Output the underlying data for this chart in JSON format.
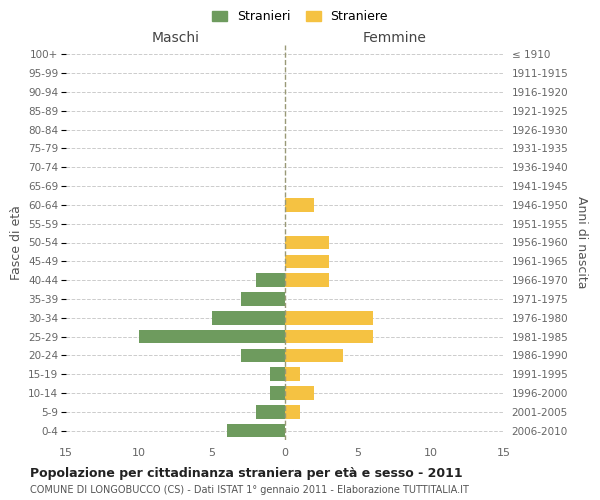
{
  "age_groups": [
    "100+",
    "95-99",
    "90-94",
    "85-89",
    "80-84",
    "75-79",
    "70-74",
    "65-69",
    "60-64",
    "55-59",
    "50-54",
    "45-49",
    "40-44",
    "35-39",
    "30-34",
    "25-29",
    "20-24",
    "15-19",
    "10-14",
    "5-9",
    "0-4"
  ],
  "birth_years": [
    "≤ 1910",
    "1911-1915",
    "1916-1920",
    "1921-1925",
    "1926-1930",
    "1931-1935",
    "1936-1940",
    "1941-1945",
    "1946-1950",
    "1951-1955",
    "1956-1960",
    "1961-1965",
    "1966-1970",
    "1971-1975",
    "1976-1980",
    "1981-1985",
    "1986-1990",
    "1991-1995",
    "1996-2000",
    "2001-2005",
    "2006-2010"
  ],
  "males": [
    0,
    0,
    0,
    0,
    0,
    0,
    0,
    0,
    0,
    0,
    0,
    0,
    2,
    3,
    5,
    10,
    3,
    1,
    1,
    2,
    4
  ],
  "females": [
    0,
    0,
    0,
    0,
    0,
    0,
    0,
    0,
    2,
    0,
    3,
    3,
    3,
    0,
    6,
    6,
    4,
    1,
    2,
    1,
    0
  ],
  "male_color": "#6e9b5e",
  "female_color": "#f5c242",
  "title": "Popolazione per cittadinanza straniera per età e sesso - 2011",
  "subtitle": "COMUNE DI LONGOBUCCO (CS) - Dati ISTAT 1° gennaio 2011 - Elaborazione TUTTITALIA.IT",
  "legend_male": "Stranieri",
  "legend_female": "Straniere",
  "xlabel_left": "Maschi",
  "xlabel_right": "Femmine",
  "ylabel_left": "Fasce di età",
  "ylabel_right": "Anni di nascita",
  "xlim": 15,
  "background_color": "#ffffff",
  "grid_color": "#cccccc"
}
